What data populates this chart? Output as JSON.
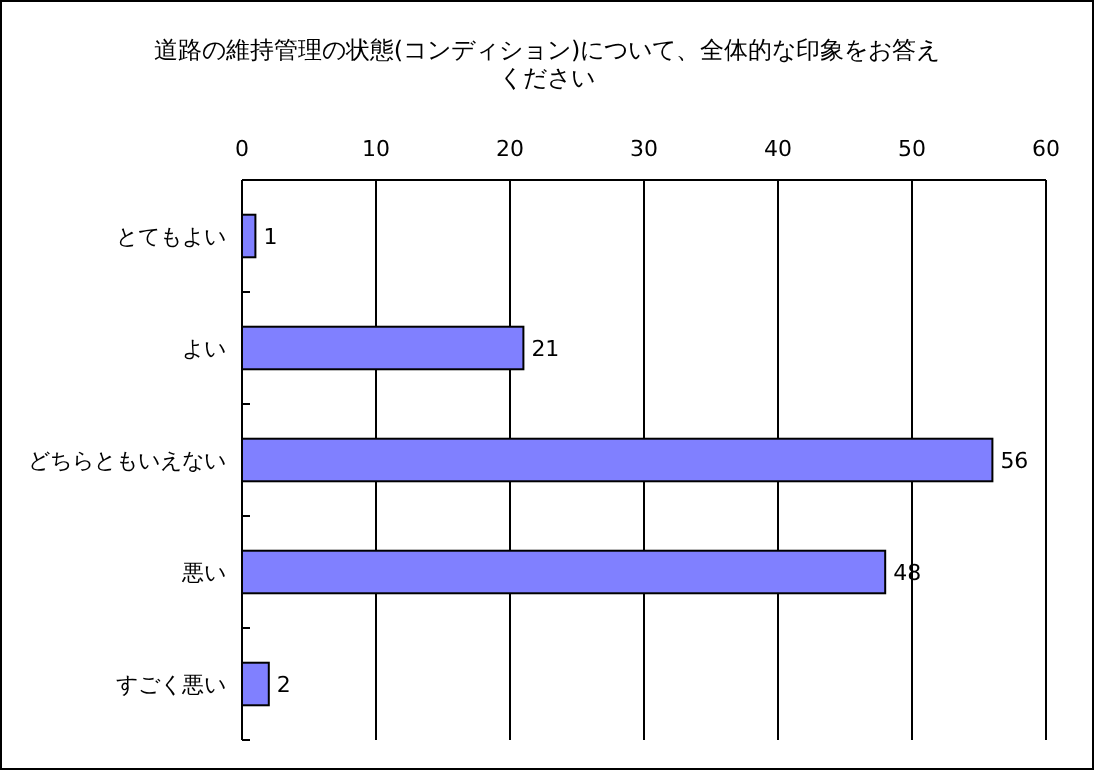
{
  "chart_data": {
    "type": "bar",
    "orientation": "horizontal",
    "title": "道路の維持管理の状態(コンディション)について、全体的な印象をお答えください",
    "categories": [
      "とてもよい",
      "よい",
      "どちらともいえない",
      "悪い",
      "すごく悪い"
    ],
    "values": [
      1,
      21,
      56,
      48,
      2
    ],
    "color": "#8080ff",
    "xlim": [
      0,
      60
    ],
    "xticks": [
      0,
      10,
      20,
      30,
      40,
      50,
      60
    ],
    "grid": "x",
    "data_labels": true
  }
}
